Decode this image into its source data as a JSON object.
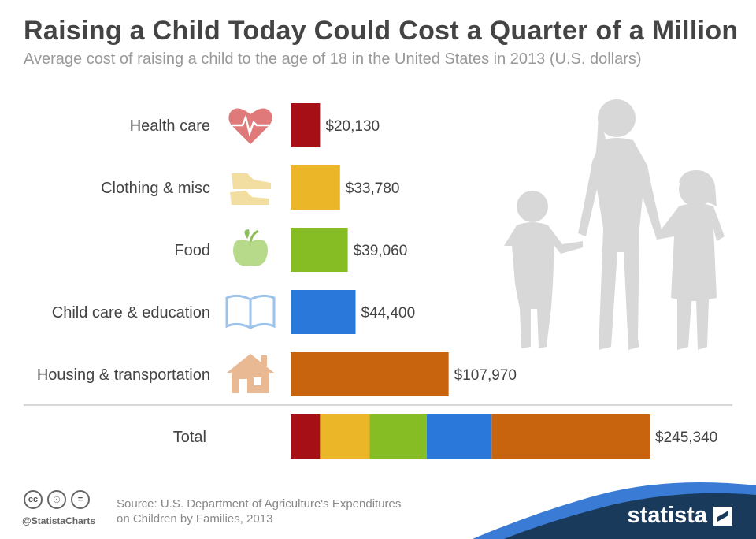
{
  "header": {
    "title": "Raising a Child Today Could Cost a Quarter of a Million",
    "subtitle": "Average cost of raising a child to the age of 18 in the United States in 2013 (U.S. dollars)"
  },
  "chart_data": {
    "type": "bar",
    "orientation": "horizontal",
    "categories": [
      "Health care",
      "Clothing & misc",
      "Food",
      "Child care & education",
      "Housing & transportation"
    ],
    "values": [
      20130,
      33780,
      39060,
      44400,
      107970
    ],
    "value_labels": [
      "$20,130",
      "$33,780",
      "$39,060",
      "$44,400",
      "$107,970"
    ],
    "colors": [
      "#a50f15",
      "#ebb728",
      "#86bd25",
      "#2a78d9",
      "#c8640e"
    ],
    "icons": [
      "heart-pulse-icon",
      "shoes-icon",
      "apple-icon",
      "book-icon",
      "house-icon"
    ],
    "total": {
      "label": "Total",
      "value": 245340,
      "value_label": "$245,340"
    },
    "xlim": [
      0,
      245340
    ],
    "grid": false,
    "legend": "none"
  },
  "footer": {
    "license_icons": [
      "cc-icon",
      "by-icon",
      "nd-icon"
    ],
    "handle": "@StatistaCharts",
    "source_line1": "Source: U.S. Department of Agriculture's Expenditures",
    "source_line2": "on Children by Families, 2013",
    "brand": "statista",
    "brand_color": "#1a3a5c",
    "accent_color": "#3a7bd5"
  }
}
